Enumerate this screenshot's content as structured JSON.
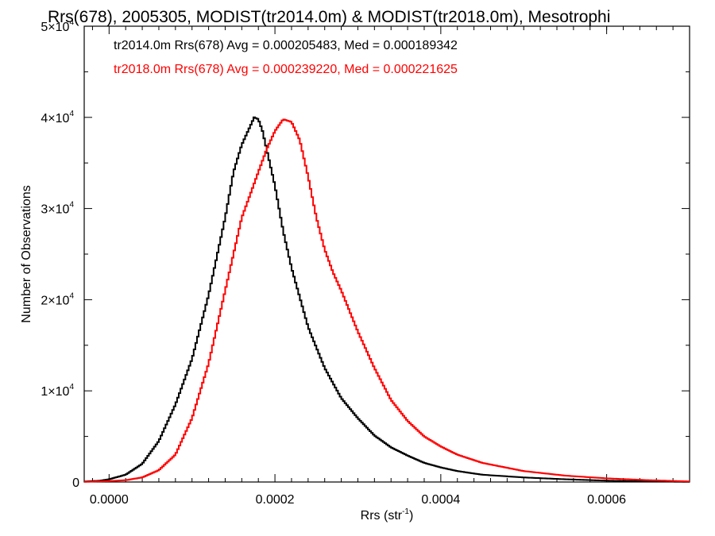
{
  "chart_data": {
    "type": "line",
    "title": "Rrs(678), 2005305, MODIST(tr2014.0m) & MODIST(tr2018.0m), Mesotrophi",
    "xlabel": "Rrs (str",
    "xlabel_sup": "-1",
    "xlabel_suffix": ")",
    "ylabel": "Number of Observations",
    "xlim": [
      -3e-05,
      0.0007
    ],
    "ylim": [
      0,
      50000
    ],
    "x_ticks": [
      {
        "value": 0.0,
        "label": "0.0000"
      },
      {
        "value": 0.0002,
        "label": "0.0002"
      },
      {
        "value": 0.0004,
        "label": "0.0004"
      },
      {
        "value": 0.0006,
        "label": "0.0006"
      }
    ],
    "y_ticks": [
      {
        "value": 0,
        "mant": "0",
        "exp": ""
      },
      {
        "value": 10000,
        "mant": "1×10",
        "exp": "4"
      },
      {
        "value": 20000,
        "mant": "2×10",
        "exp": "4"
      },
      {
        "value": 30000,
        "mant": "3×10",
        "exp": "4"
      },
      {
        "value": 40000,
        "mant": "4×10",
        "exp": "4"
      },
      {
        "value": 50000,
        "mant": "5×10",
        "exp": "4"
      }
    ],
    "grid": false,
    "legend_position": "top-left",
    "series": [
      {
        "name": "tr2014.0m Rrs(678) Avg = 0.000205483, Med = 0.000189342",
        "color": "#000000",
        "x": [
          -3e-05,
          -1e-05,
          0.0,
          2e-05,
          4e-05,
          6e-05,
          8e-05,
          0.0001,
          0.00012,
          0.00014,
          0.00015,
          0.00016,
          0.00017,
          0.000175,
          0.00018,
          0.000185,
          0.00019,
          0.0002,
          0.00021,
          0.00022,
          0.00024,
          0.00026,
          0.00028,
          0.0003,
          0.00032,
          0.00034,
          0.00036,
          0.00038,
          0.0004,
          0.00042,
          0.00045,
          0.0005,
          0.00055,
          0.0006,
          0.00065,
          0.0007
        ],
        "y": [
          50,
          150,
          300,
          800,
          2000,
          4500,
          8500,
          13500,
          20500,
          29000,
          34000,
          37000,
          39000,
          40000,
          39800,
          38500,
          36500,
          32500,
          27500,
          23500,
          17000,
          12500,
          9200,
          7000,
          5100,
          3800,
          2900,
          2100,
          1600,
          1200,
          800,
          500,
          300,
          150,
          70,
          20
        ]
      },
      {
        "name": "tr2018.0m Rrs(678) Avg = 0.000239220, Med = 0.000221625",
        "color": "#ff0000",
        "x": [
          -3e-05,
          0.0,
          2e-05,
          4e-05,
          6e-05,
          8e-05,
          0.0001,
          0.00012,
          0.00014,
          0.00016,
          0.00018,
          0.00019,
          0.0002,
          0.00021,
          0.00022,
          0.00023,
          0.00024,
          0.00025,
          0.00026,
          0.00027,
          0.00028,
          0.0003,
          0.00032,
          0.00034,
          0.00036,
          0.00038,
          0.0004,
          0.00042,
          0.00045,
          0.0005,
          0.00055,
          0.0006,
          0.00065,
          0.0007
        ],
        "y": [
          20,
          100,
          200,
          500,
          1300,
          3000,
          7000,
          13000,
          21000,
          29000,
          34000,
          36500,
          38500,
          39800,
          39500,
          37500,
          33500,
          29000,
          25500,
          23000,
          21000,
          16500,
          12500,
          9000,
          6700,
          5000,
          3900,
          3000,
          2100,
          1200,
          700,
          400,
          200,
          60
        ]
      }
    ]
  }
}
